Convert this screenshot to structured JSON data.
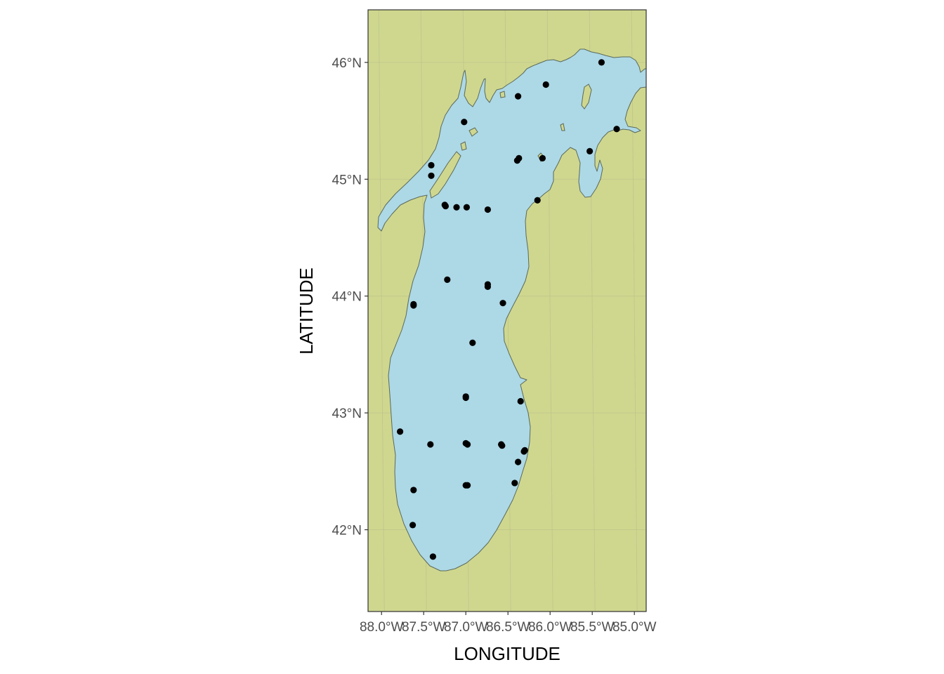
{
  "axes": {
    "xlabel": "LONGITUDE",
    "ylabel": "LATITUDE",
    "xlim": [
      -88.16,
      -84.86
    ],
    "ylim": [
      41.3,
      46.45
    ],
    "x_ticks": [
      {
        "value": -88.0,
        "label": "88.0°W"
      },
      {
        "value": -87.5,
        "label": "87.5°W"
      },
      {
        "value": -87.0,
        "label": "87.0°W"
      },
      {
        "value": -86.5,
        "label": "86.5°W"
      },
      {
        "value": -86.0,
        "label": "86.0°W"
      },
      {
        "value": -85.5,
        "label": "85.5°W"
      },
      {
        "value": -85.0,
        "label": "85.0°W"
      }
    ],
    "y_ticks": [
      {
        "value": 42,
        "label": "42°N"
      },
      {
        "value": 43,
        "label": "43°N"
      },
      {
        "value": 44,
        "label": "44°N"
      },
      {
        "value": 45,
        "label": "45°N"
      },
      {
        "value": 46,
        "label": "46°N"
      }
    ]
  },
  "colors": {
    "land": "#cfd78f",
    "water": "#add8e6",
    "shoreline": "#5a6a5a",
    "grid": "#bfc58a",
    "points": "#000000",
    "frame": "#333333"
  },
  "chart_data": {
    "type": "scatter",
    "x": [
      -85.39,
      -86.05,
      -86.38,
      -87.02,
      -85.21,
      -85.53,
      -86.09,
      -86.37,
      -86.39,
      -87.41,
      -87.41,
      -87.25,
      -87.24,
      -87.11,
      -86.99,
      -86.74,
      -86.15,
      -87.22,
      -86.74,
      -86.74,
      -87.62,
      -87.62,
      -86.56,
      -86.92,
      -87.0,
      -87.0,
      -86.35,
      -87.78,
      -87.42,
      -87.0,
      -86.98,
      -86.58,
      -86.57,
      -86.3,
      -86.31,
      -86.38,
      -87.62,
      -87.0,
      -86.98,
      -86.42,
      -87.63,
      -87.39
    ],
    "y": [
      46.0,
      45.81,
      45.71,
      45.49,
      45.43,
      45.24,
      45.18,
      45.18,
      45.16,
      45.12,
      45.03,
      44.78,
      44.77,
      44.76,
      44.76,
      44.74,
      44.82,
      44.14,
      44.1,
      44.08,
      43.92,
      43.93,
      43.94,
      43.6,
      43.14,
      43.13,
      43.1,
      42.84,
      42.73,
      42.74,
      42.73,
      42.73,
      42.72,
      42.68,
      42.67,
      42.58,
      42.34,
      42.38,
      42.38,
      42.4,
      42.04,
      41.77
    ]
  }
}
